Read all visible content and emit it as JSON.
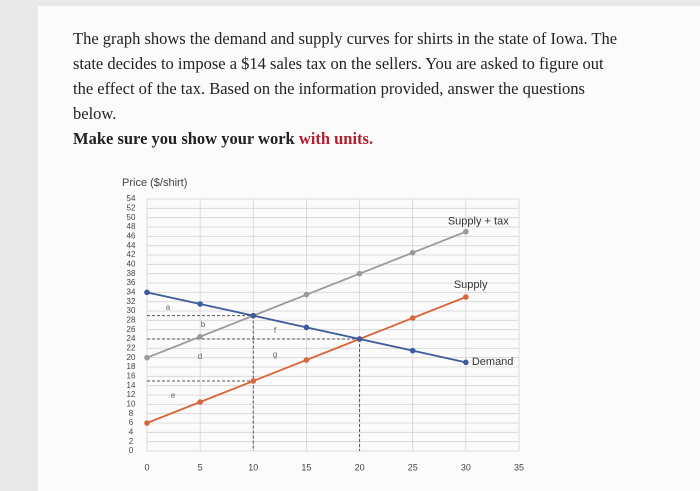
{
  "document": {
    "paragraph": "The graph shows the demand and supply curves for shirts in the state of Iowa. The state decides to impose a $14 sales tax on the sellers. You are asked to figure out the effect of the tax. Based on the information provided, answer the questions below.",
    "instruction": "Make sure you show your work",
    "emphasis": "with units."
  },
  "chart_data": {
    "type": "line",
    "y_label": "Price ($/shirt)",
    "x": [
      0,
      5,
      10,
      15,
      20,
      25,
      30
    ],
    "series": [
      {
        "name": "Supply + tax",
        "color": "#9a9a9a",
        "values": [
          20,
          24.5,
          29,
          33.5,
          38,
          42.5,
          47
        ]
      },
      {
        "name": "Supply",
        "color": "#d9663a",
        "values": [
          6,
          10.5,
          15,
          19.5,
          24,
          28.5,
          33
        ]
      },
      {
        "name": "Demand",
        "color": "#3d5c9c",
        "values": [
          34,
          31.5,
          29,
          26.5,
          24,
          21.5,
          19
        ]
      }
    ],
    "annotations": [
      "a",
      "b",
      "d",
      "e",
      "f",
      "g"
    ],
    "xlim": [
      0,
      35
    ],
    "ylim": [
      0,
      54
    ],
    "xticks": [
      0,
      5,
      10,
      15,
      20,
      25,
      30,
      35
    ],
    "yticks": [
      0,
      2,
      4,
      6,
      8,
      10,
      12,
      14,
      16,
      18,
      20,
      22,
      24,
      26,
      28,
      30,
      32,
      34,
      36,
      38,
      40,
      42,
      44,
      46,
      48,
      50,
      52,
      54
    ],
    "grid": true
  }
}
